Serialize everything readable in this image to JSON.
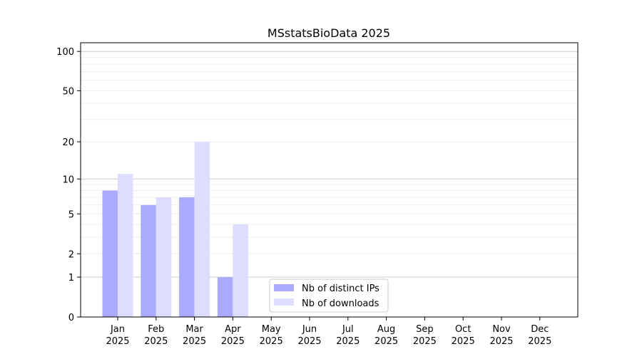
{
  "chart_data": {
    "type": "bar",
    "title": "MSstatsBioData 2025",
    "categories": [
      "Jan\n2025",
      "Feb\n2025",
      "Mar\n2025",
      "Apr\n2025",
      "May\n2025",
      "Jun\n2025",
      "Jul\n2025",
      "Aug\n2025",
      "Sep\n2025",
      "Oct\n2025",
      "Nov\n2025",
      "Dec\n2025"
    ],
    "series": [
      {
        "name": "Nb of distinct IPs",
        "color": "#aaaaff",
        "values": [
          8,
          6,
          7,
          1,
          0,
          0,
          0,
          0,
          0,
          0,
          0,
          0
        ]
      },
      {
        "name": "Nb of downloads",
        "color": "#ddddff",
        "values": [
          11,
          7,
          20,
          4,
          0,
          0,
          0,
          0,
          0,
          0,
          0,
          0
        ]
      }
    ],
    "yscale": "log(1+x)",
    "yticks": [
      0,
      1,
      2,
      5,
      10,
      20,
      50,
      100
    ],
    "ylim": [
      0,
      117
    ],
    "grid": true,
    "legend_position": "lower-center"
  }
}
